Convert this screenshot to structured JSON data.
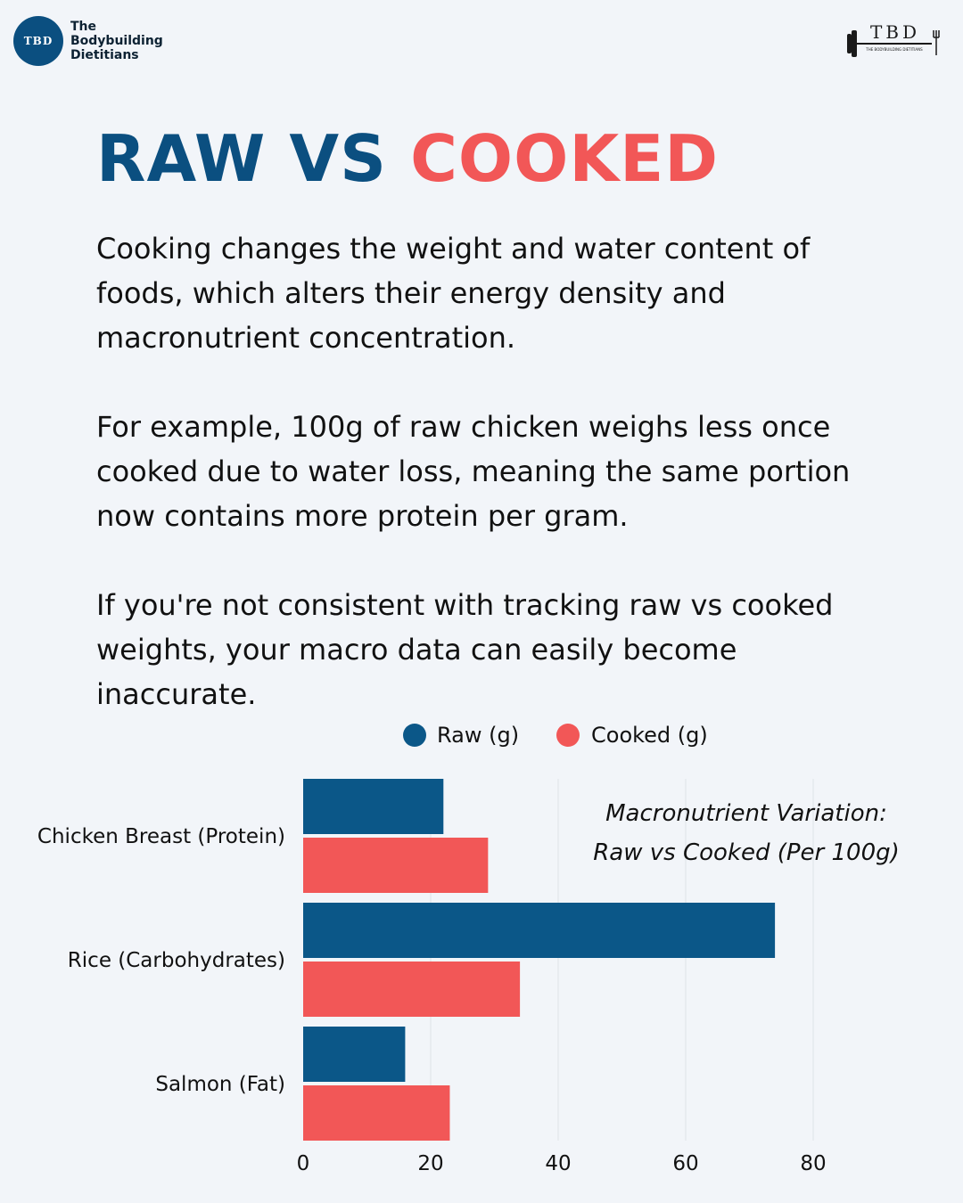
{
  "brand": {
    "logo_text": "TBD",
    "name_lines": [
      "The",
      "Bodybuilding",
      "Dietitians"
    ],
    "mark_text": "TBD",
    "mark_subtext": "THE BODYBUILDING DIETITIANS"
  },
  "headline": {
    "part1": "RAW VS",
    "part2": "COOKED"
  },
  "paragraphs": [
    "Cooking changes the weight and water content of foods, which alters their energy density and macronutrient concentration.",
    "For example, 100g of raw chicken weighs less once cooked due to water loss, meaning the same portion now contains more protein per gram.",
    "If you're not consistent with tracking raw vs cooked weights, your macro data can easily become inaccurate."
  ],
  "colors": {
    "raw": "#0b5788",
    "cooked": "#f25757",
    "headline_blue": "#0b4f80",
    "background": "#f2f5f9"
  },
  "chart_data": {
    "type": "bar",
    "orientation": "horizontal",
    "title_lines": [
      "Macronutrient Variation:",
      "Raw vs Cooked (Per 100g)"
    ],
    "categories": [
      "Chicken Breast (Protein)",
      "Rice (Carbohydrates)",
      "Salmon (Fat)"
    ],
    "series": [
      {
        "name": "Raw (g)",
        "values": [
          22,
          74,
          16
        ]
      },
      {
        "name": "Cooked (g)",
        "values": [
          29,
          34,
          23
        ]
      }
    ],
    "xlim": [
      0,
      80
    ],
    "xticks": [
      "0",
      "20",
      "40",
      "60",
      "80"
    ],
    "grid": true,
    "legend_position": "top"
  }
}
